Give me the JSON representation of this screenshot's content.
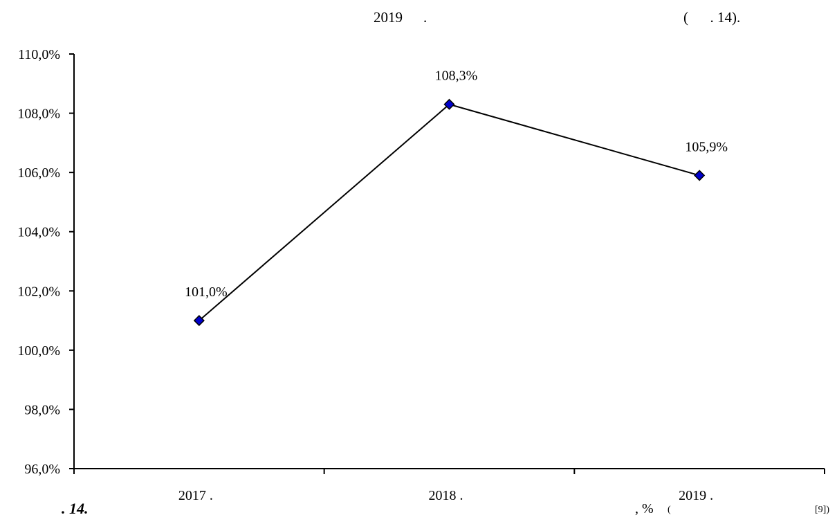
{
  "page": {
    "top_year": "2019",
    "top_dot": ".",
    "top_ref": "(      . 14)."
  },
  "figure": {
    "number": ". 14.",
    "unit": ", %",
    "source_open": "(",
    "source_ref": "[9])"
  },
  "chart_data": {
    "type": "line",
    "categories": [
      "2017  .",
      "2018  .",
      "2019  ."
    ],
    "series": [
      {
        "values": [
          101.0,
          108.3,
          105.9
        ],
        "labels": [
          "101,0%",
          "108,3%",
          "105,9%"
        ]
      }
    ],
    "ylim": [
      96.0,
      110.0
    ],
    "yticks": [
      96.0,
      98.0,
      100.0,
      102.0,
      104.0,
      106.0,
      108.0,
      110.0
    ],
    "ytick_labels": [
      "96,0%",
      "98,0%",
      "100,0%",
      "102,0%",
      "104,0%",
      "106,0%",
      "108,0%",
      "110,0%"
    ],
    "grid": false,
    "marker": "diamond",
    "line_color": "#000000",
    "marker_color": "#0000cc"
  }
}
